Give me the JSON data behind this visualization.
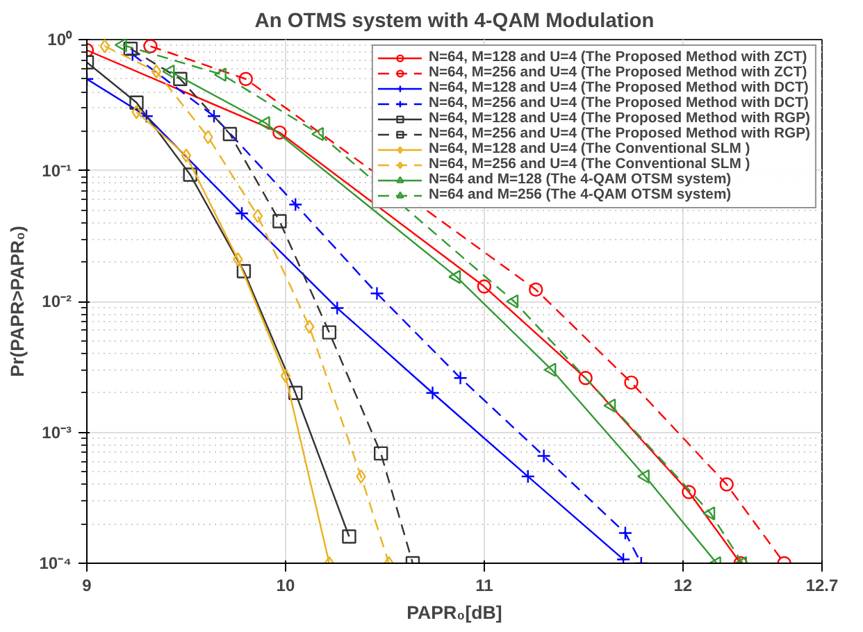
{
  "chart_data": {
    "type": "line",
    "title": "An OTMS system with 4-QAM Modulation",
    "xlabel": "PAPR₀[dB]",
    "ylabel": "Pr(PAPR>PAPR₀)",
    "log": "y",
    "grid": true,
    "legend": "top right",
    "xlim": [
      9,
      12.7
    ],
    "xticks": [
      9,
      10,
      11,
      12,
      12.7
    ],
    "ylim": [
      0.0001,
      1
    ],
    "yticks": [
      {
        "value": 0.0001,
        "label": "10⁻⁴"
      },
      {
        "value": 0.001,
        "label": "10⁻³"
      },
      {
        "value": 0.01,
        "label": "10⁻²"
      },
      {
        "value": 0.1,
        "label": "10⁻¹"
      },
      {
        "value": 1,
        "label": "10⁰"
      }
    ],
    "series": [
      {
        "name": "N=64, M=128 and U=4 (The Proposed Method with ZCT)",
        "color": "#ff0000",
        "marker": "circle",
        "line_style": "solid",
        "x": [
          9,
          9.97,
          11.0,
          11.51,
          12.03,
          12.29
        ],
        "values": [
          0.83,
          0.195,
          0.013,
          0.0026,
          0.00035,
          0.0001
        ]
      },
      {
        "name": "N=64, M=256 and U=4 (The Proposed Method with ZCT)",
        "color": "#ff0000",
        "marker": "circle",
        "line_style": "dashed",
        "x": [
          9.32,
          9.8,
          11.26,
          11.74,
          12.22,
          12.51
        ],
        "values": [
          0.89,
          0.5,
          0.0123,
          0.0024,
          0.0004,
          0.0001
        ]
      },
      {
        "name": "N=64, M=128 and U=4 (The Proposed Method with DCT)",
        "color": "#0000ff",
        "marker": "cross",
        "line_style": "solid",
        "x": [
          9,
          9.3,
          9.78,
          10.26,
          10.74,
          11.22,
          11.7
        ],
        "values": [
          0.5,
          0.26,
          0.047,
          0.0089,
          0.002,
          0.00046,
          0.000107
        ]
      },
      {
        "name": "N=64, M=256 and U=4 (The Proposed Method with DCT)",
        "color": "#0000ff",
        "marker": "cross",
        "line_style": "dashed",
        "x": [
          9.23,
          9.64,
          10.05,
          10.46,
          10.88,
          11.3,
          11.71,
          11.79
        ],
        "values": [
          0.77,
          0.26,
          0.055,
          0.0115,
          0.0026,
          0.00066,
          0.00017,
          0.0001
        ]
      },
      {
        "name": "N=64, M=128 and U=4 (The Proposed Method with RGP)",
        "color": "#333333",
        "marker": "square",
        "line_style": "solid",
        "x": [
          9,
          9.25,
          9.52,
          9.79,
          10.05,
          10.32
        ],
        "values": [
          0.67,
          0.33,
          0.093,
          0.017,
          0.002,
          0.00016
        ]
      },
      {
        "name": "N=64, M=256 and U=4 (The Proposed Method with RGP)",
        "color": "#333333",
        "marker": "square",
        "line_style": "dashed",
        "x": [
          9.22,
          9.47,
          9.72,
          9.97,
          10.22,
          10.48,
          10.64
        ],
        "values": [
          0.85,
          0.5,
          0.19,
          0.041,
          0.0058,
          0.00069,
          0.0001
        ]
      },
      {
        "name": "N=64, M=128 and U=4 (The Conventional SLM )",
        "color": "#edb120",
        "marker": "diamond",
        "line_style": "solid",
        "x": [
          9.25,
          9.5,
          9.76,
          10.0,
          10.22
        ],
        "values": [
          0.28,
          0.13,
          0.021,
          0.0027,
          0.0001
        ]
      },
      {
        "name": "N=64, M=256 and U=4 (The Conventional SLM )",
        "color": "#edb120",
        "marker": "diamond",
        "line_style": "dashed",
        "x": [
          9.09,
          9.35,
          9.61,
          9.86,
          10.12,
          10.38,
          10.52
        ],
        "values": [
          0.89,
          0.57,
          0.18,
          0.045,
          0.0064,
          0.00046,
          0.0001
        ]
      },
      {
        "name": "N=64 and M=128 (The 4-QAM OTSM system)",
        "color": "#339933",
        "marker": "triangle",
        "line_style": "solid",
        "x": [
          9.42,
          9.9,
          10.86,
          11.34,
          11.81,
          12.17
        ],
        "values": [
          0.57,
          0.23,
          0.0154,
          0.003,
          0.00046,
          0.0001
        ]
      },
      {
        "name": "N=64 and M=256 (The 4-QAM OTSM system)",
        "color": "#339933",
        "marker": "triangle",
        "line_style": "dashed",
        "x": [
          9.18,
          9.68,
          10.17,
          11.15,
          11.64,
          12.14,
          12.3
        ],
        "values": [
          0.91,
          0.54,
          0.19,
          0.01,
          0.0016,
          0.00024,
          0.0001
        ]
      }
    ]
  }
}
